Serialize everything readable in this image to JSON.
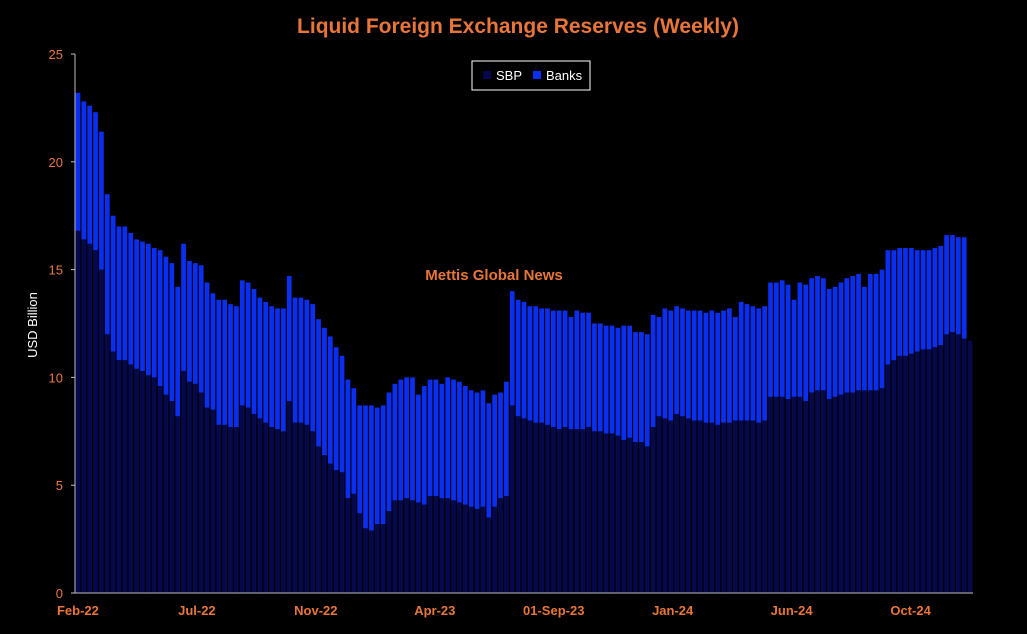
{
  "chart_data": {
    "type": "bar",
    "stacked": true,
    "title": "Liquid Foreign Exchange Reserves (Weekly)",
    "ylabel": "USD Billion",
    "xlabel": "",
    "ylim": [
      0,
      25
    ],
    "yticks": [
      0,
      5,
      10,
      15,
      20,
      25
    ],
    "xtick_labels": [
      "Feb-22",
      "Jul-22",
      "Nov-22",
      "Apr-23",
      "01-Sep-23",
      "Jan-24",
      "Jun-24",
      "Oct-24"
    ],
    "annotation": "Mettis Global News",
    "legend": {
      "placement": "top-center",
      "entries": [
        "SBP",
        "Banks"
      ]
    },
    "grid": false,
    "colors": {
      "SBP": "#05084a",
      "Banks": "#0a2ff0",
      "text": "#e8763a",
      "axis": "#bfbfbf",
      "background": "#000000"
    },
    "series": [
      {
        "name": "SBP",
        "values": [
          16.8,
          16.4,
          16.2,
          15.9,
          15.0,
          12.0,
          11.2,
          10.8,
          10.8,
          10.6,
          10.4,
          10.3,
          10.1,
          10.0,
          9.6,
          9.2,
          8.9,
          8.2,
          10.3,
          9.8,
          9.7,
          9.3,
          8.6,
          8.5,
          7.8,
          7.8,
          7.7,
          7.7,
          8.7,
          8.6,
          8.3,
          8.1,
          7.9,
          7.7,
          7.6,
          7.5,
          8.9,
          7.9,
          7.9,
          7.8,
          7.5,
          6.8,
          6.4,
          6.0,
          5.7,
          5.6,
          4.4,
          4.6,
          3.7,
          3.0,
          2.9,
          3.2,
          3.2,
          3.8,
          4.3,
          4.3,
          4.4,
          4.3,
          4.2,
          4.1,
          4.5,
          4.5,
          4.4,
          4.4,
          4.3,
          4.2,
          4.1,
          4.0,
          3.9,
          4.0,
          3.5,
          4.0,
          4.4,
          4.5,
          8.7,
          8.2,
          8.1,
          8.0,
          7.9,
          7.9,
          7.8,
          7.7,
          7.6,
          7.7,
          7.6,
          7.6,
          7.6,
          7.7,
          7.5,
          7.5,
          7.4,
          7.4,
          7.3,
          7.1,
          7.2,
          7.0,
          7.0,
          6.8,
          7.7,
          8.2,
          8.1,
          8.0,
          8.3,
          8.2,
          8.1,
          8.0,
          8.0,
          7.9,
          7.9,
          7.8,
          7.9,
          7.9,
          8.0,
          8.0,
          8.0,
          8.0,
          7.9,
          8.0,
          9.1,
          9.1,
          9.1,
          9.0,
          9.1,
          9.1,
          8.9,
          9.3,
          9.4,
          9.4,
          9.0,
          9.1,
          9.2,
          9.3,
          9.3,
          9.4,
          9.4,
          9.4,
          9.4,
          9.5,
          10.6,
          10.8,
          11.0,
          11.0,
          11.1,
          11.2,
          11.3,
          11.3,
          11.4,
          11.5,
          12.0,
          12.1,
          12.0,
          11.8,
          11.7
        ]
      },
      {
        "name": "Banks",
        "values": [
          6.4,
          6.4,
          6.4,
          6.4,
          6.4,
          6.5,
          6.3,
          6.2,
          6.2,
          6.1,
          6.0,
          6.0,
          6.1,
          6.0,
          6.3,
          6.4,
          6.4,
          6.0,
          5.9,
          5.6,
          5.6,
          5.9,
          5.8,
          5.4,
          5.8,
          5.8,
          5.7,
          5.6,
          5.8,
          5.8,
          5.8,
          5.6,
          5.6,
          5.6,
          5.6,
          5.7,
          5.8,
          5.8,
          5.8,
          5.8,
          5.9,
          5.9,
          5.9,
          5.9,
          5.7,
          5.4,
          5.5,
          4.9,
          5.0,
          5.7,
          5.8,
          5.4,
          5.5,
          5.5,
          5.4,
          5.6,
          5.6,
          5.7,
          5.0,
          5.5,
          5.4,
          5.4,
          5.3,
          5.6,
          5.6,
          5.6,
          5.5,
          5.4,
          5.4,
          5.4,
          5.3,
          5.2,
          4.9,
          5.3,
          5.3,
          5.4,
          5.4,
          5.3,
          5.4,
          5.3,
          5.4,
          5.4,
          5.5,
          5.4,
          5.2,
          5.5,
          5.4,
          5.3,
          5.0,
          5.0,
          5.0,
          5.0,
          5.0,
          5.3,
          5.2,
          5.1,
          5.1,
          5.2,
          5.2,
          4.6,
          5.1,
          5.1,
          5.0,
          5.0,
          5.0,
          5.1,
          5.1,
          5.1,
          5.2,
          5.2,
          5.2,
          5.3,
          4.8,
          5.5,
          5.4,
          5.3,
          5.3,
          5.3,
          5.3,
          5.3,
          5.4,
          5.3,
          4.5,
          5.3,
          5.4,
          5.3,
          5.3,
          5.2,
          5.1,
          5.1,
          5.2,
          5.3,
          5.4,
          5.4,
          4.8,
          5.4,
          5.4,
          5.5,
          5.3,
          5.1,
          5.0,
          5.0,
          4.9,
          4.7,
          4.6,
          4.6,
          4.6,
          4.6,
          4.6,
          4.5,
          4.5,
          4.7
        ]
      }
    ]
  }
}
